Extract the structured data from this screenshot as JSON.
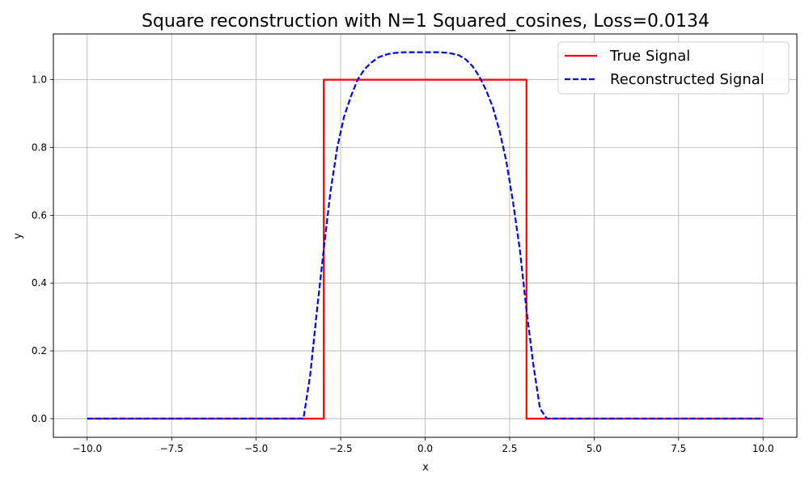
{
  "chart_data": {
    "type": "line",
    "title": "Square reconstruction with N=1 Squared_cosines, Loss=0.0134",
    "xlabel": "x",
    "ylabel": "y",
    "xlim": [
      -11,
      11
    ],
    "ylim": [
      -0.055,
      1.135
    ],
    "xticks": [
      -10,
      -7.5,
      -5,
      -2.5,
      0,
      2.5,
      5,
      7.5,
      10
    ],
    "xtick_labels": [
      "−10.0",
      "−7.5",
      "−5.0",
      "−2.5",
      "0.0",
      "2.5",
      "5.0",
      "7.5",
      "10.0"
    ],
    "yticks": [
      0,
      0.2,
      0.4,
      0.6,
      0.8,
      1.0
    ],
    "ytick_labels": [
      "0.0",
      "0.2",
      "0.4",
      "0.6",
      "0.8",
      "1.0"
    ],
    "grid": true,
    "legend_position": "top-right",
    "series": [
      {
        "name": "True Signal",
        "color": "#ff0000",
        "style": "solid",
        "x": [
          -10,
          -3,
          -3,
          3,
          3,
          10
        ],
        "y": [
          0,
          0,
          1,
          1,
          0,
          0
        ]
      },
      {
        "name": "Reconstructed Signal",
        "color": "#0000ff",
        "style": "dashed",
        "x": [
          -10,
          -3.6,
          -3.4,
          -3.2,
          -3.0,
          -2.8,
          -2.6,
          -2.4,
          -2.2,
          -2.0,
          -1.8,
          -1.6,
          -1.4,
          -1.2,
          -1.0,
          -0.8,
          -0.6,
          -0.4,
          -0.2,
          0,
          0.2,
          0.4,
          0.6,
          0.8,
          1.0,
          1.2,
          1.4,
          1.6,
          1.8,
          2.0,
          2.2,
          2.4,
          2.6,
          2.8,
          3.0,
          3.2,
          3.4,
          3.6,
          10
        ],
        "y": [
          0,
          0,
          0.13,
          0.32,
          0.5,
          0.67,
          0.8,
          0.89,
          0.95,
          1.0,
          1.03,
          1.05,
          1.065,
          1.073,
          1.078,
          1.08,
          1.081,
          1.081,
          1.081,
          1.081,
          1.081,
          1.081,
          1.08,
          1.077,
          1.072,
          1.06,
          1.04,
          1.01,
          0.97,
          0.92,
          0.85,
          0.76,
          0.64,
          0.5,
          0.32,
          0.16,
          0.03,
          0,
          0
        ]
      }
    ]
  }
}
